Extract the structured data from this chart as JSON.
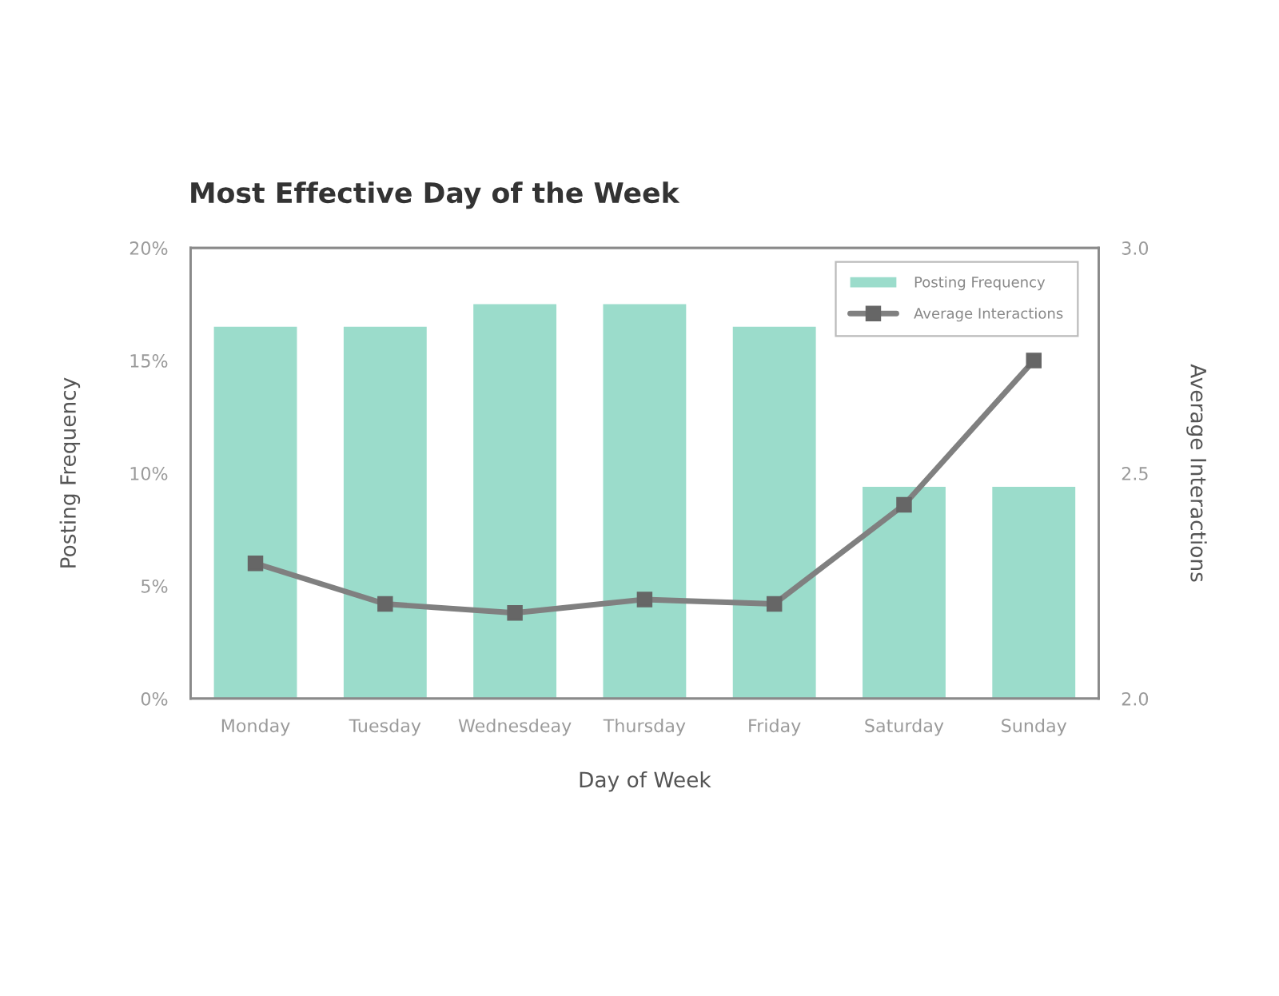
{
  "chart_data": {
    "type": "bar",
    "title": "Most Effective Day of the Week",
    "xlabel": "Day of Week",
    "ylabel": "Posting Frequency",
    "y2label": "Average Interactions",
    "categories": [
      "Monday",
      "Tuesday",
      "Wednesdeay",
      "Thursday",
      "Friday",
      "Saturday",
      "Sunday"
    ],
    "series": [
      {
        "name": "Posting Frequency",
        "color": "#9bdccb",
        "values": [
          16.5,
          16.5,
          17.5,
          17.5,
          16.5,
          9.4,
          9.4
        ]
      },
      {
        "name": "Average Interactions",
        "type": "line",
        "axis": "y2",
        "color": "#808080",
        "values": [
          2.3,
          2.21,
          2.19,
          2.22,
          2.21,
          2.43,
          2.75
        ]
      }
    ],
    "ylim": [
      0,
      20
    ],
    "yticks": [
      {
        "value": 0,
        "label": "0%"
      },
      {
        "value": 5,
        "label": "5%"
      },
      {
        "value": 10,
        "label": "10%"
      },
      {
        "value": 15,
        "label": "15%"
      },
      {
        "value": 20,
        "label": "20%"
      }
    ],
    "y2lim": [
      2,
      3
    ],
    "y2ticks": [
      {
        "value": 2,
        "label": "2.0"
      },
      {
        "value": 2.5,
        "label": "2.5"
      },
      {
        "value": 3,
        "label": "3.0"
      }
    ],
    "legend": "top right",
    "marker": "square",
    "line_style": "solid"
  }
}
